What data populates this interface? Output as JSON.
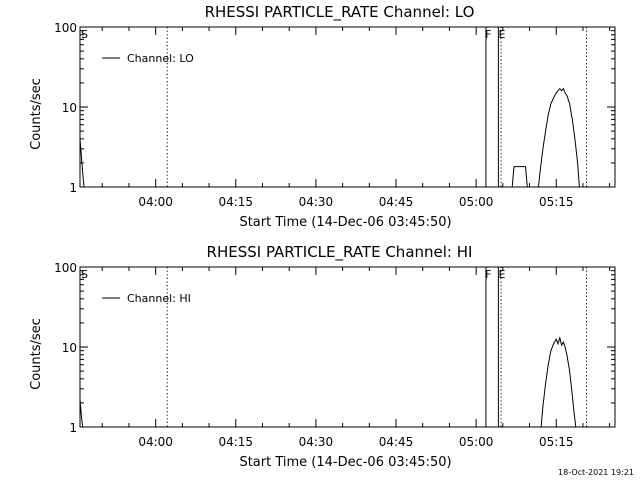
{
  "footer": {
    "timestamp": "18-Oct-2021 19:21"
  },
  "chart_data": [
    {
      "type": "line",
      "title": "RHESSI PARTICLE_RATE Channel: LO",
      "xlabel": "Start Time (14-Dec-06 03:45:50)",
      "ylabel": "Counts/sec",
      "yscale": "log",
      "ylim": [
        1,
        100
      ],
      "xlim": [
        "03:45:50",
        "05:26:00"
      ],
      "x_ticks": [
        "04:00",
        "04:15",
        "04:30",
        "04:45",
        "05:00",
        "05:15"
      ],
      "y_ticks": [
        "1",
        "10",
        "100"
      ],
      "legend": {
        "position": "top-left",
        "entries": [
          "Channel: LO"
        ]
      },
      "annotations": [
        {
          "text": "S",
          "x": "03:45:50"
        },
        {
          "text": "F",
          "x": "05:01:30"
        },
        {
          "text": "E",
          "x": "05:04:00"
        }
      ],
      "vertical_markers": {
        "dotted": [
          "04:02:10",
          "05:04:40",
          "05:20:40"
        ],
        "solid": [
          "05:01:50",
          "05:04:10"
        ]
      },
      "series": [
        {
          "name": "Channel: LO",
          "color": "#000000",
          "segments": [
            {
              "x": [
                "03:45:50",
                "03:46:05",
                "03:46:20",
                "03:46:35"
              ],
              "y": [
                4,
                2.5,
                1.5,
                1
              ]
            },
            {
              "x": [
                "05:06:45",
                "05:07:05",
                "05:07:25",
                "05:08:55",
                "05:09:15",
                "05:09:35"
              ],
              "y": [
                1,
                1.8,
                1.8,
                1.8,
                1.8,
                1
              ]
            },
            {
              "x": [
                "05:11:40",
                "05:12:00",
                "05:12:30",
                "05:13:00",
                "05:13:30",
                "05:14:00",
                "05:14:30",
                "05:15:00",
                "05:15:20",
                "05:15:40",
                "05:16:00",
                "05:16:20",
                "05:16:40",
                "05:17:00",
                "05:17:30",
                "05:18:00",
                "05:18:30",
                "05:19:00",
                "05:19:20"
              ],
              "y": [
                1,
                1.6,
                3,
                5,
                8,
                11,
                13,
                15,
                16,
                17,
                16,
                17,
                15,
                14,
                11,
                7,
                4,
                2,
                1
              ]
            }
          ]
        }
      ]
    },
    {
      "type": "line",
      "title": "RHESSI PARTICLE_RATE Channel: HI",
      "xlabel": "Start Time (14-Dec-06 03:45:50)",
      "ylabel": "Counts/sec",
      "yscale": "log",
      "ylim": [
        1,
        100
      ],
      "xlim": [
        "03:45:50",
        "05:26:00"
      ],
      "x_ticks": [
        "04:00",
        "04:15",
        "04:30",
        "04:45",
        "05:00",
        "05:15"
      ],
      "y_ticks": [
        "1",
        "10",
        "100"
      ],
      "legend": {
        "position": "top-left",
        "entries": [
          "Channel: HI"
        ]
      },
      "annotations": [
        {
          "text": "S",
          "x": "03:45:50"
        },
        {
          "text": "F",
          "x": "05:01:30"
        },
        {
          "text": "E",
          "x": "05:04:00"
        }
      ],
      "vertical_markers": {
        "dotted": [
          "04:02:10",
          "05:04:40",
          "05:20:40"
        ],
        "solid": [
          "05:01:50",
          "05:04:10"
        ]
      },
      "series": [
        {
          "name": "Channel: HI",
          "color": "#000000",
          "segments": [
            {
              "x": [
                "03:45:50",
                "03:46:05",
                "03:46:20"
              ],
              "y": [
                2.2,
                1.4,
                1
              ]
            },
            {
              "x": [
                "05:12:10",
                "05:12:30",
                "05:13:00",
                "05:13:30",
                "05:14:00",
                "05:14:30",
                "05:15:00",
                "05:15:20",
                "05:15:40",
                "05:16:00",
                "05:16:20",
                "05:16:40",
                "05:17:00",
                "05:17:30",
                "05:18:00",
                "05:18:20",
                "05:18:40"
              ],
              "y": [
                1,
                1.8,
                3.5,
                6,
                9,
                11,
                12.5,
                11,
                13,
                10.5,
                11.5,
                10,
                8,
                5,
                2.5,
                1.5,
                1
              ]
            }
          ]
        }
      ]
    }
  ]
}
